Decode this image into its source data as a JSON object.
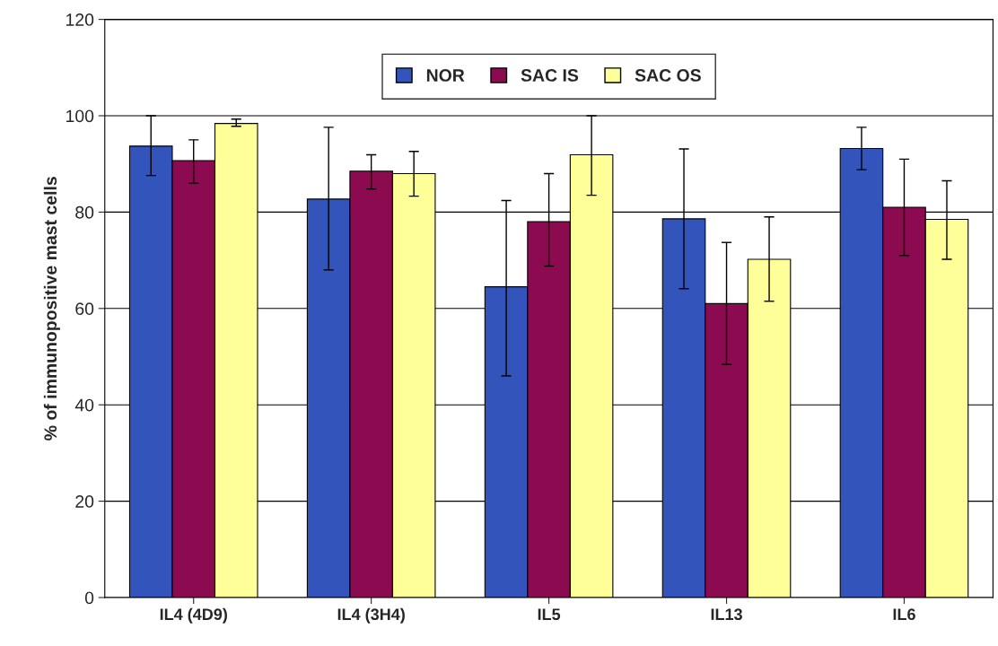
{
  "chart_data": {
    "type": "bar",
    "ylabel": "% of immunopositive mast cells",
    "categories": [
      "IL4 (4D9)",
      "IL4 (3H4)",
      "IL5",
      "IL13",
      "IL6"
    ],
    "series": [
      {
        "name": "NOR",
        "color": "#3355bb",
        "values": [
          93.7,
          82.7,
          64.5,
          78.6,
          93.2
        ],
        "errors": [
          [
            87.6,
            100
          ],
          [
            68,
            97.6
          ],
          [
            46,
            82.4
          ],
          [
            64.1,
            93.1
          ],
          [
            88.8,
            97.6
          ]
        ]
      },
      {
        "name": "SAC IS",
        "color": "#8b0a50",
        "values": [
          90.7,
          88.5,
          78,
          61,
          81
        ],
        "errors": [
          [
            86,
            95
          ],
          [
            84.8,
            91.9
          ],
          [
            68.8,
            88
          ],
          [
            48.4,
            73.7
          ],
          [
            71,
            91
          ]
        ]
      },
      {
        "name": "SAC OS",
        "color": "#ffff99",
        "values": [
          98.4,
          88,
          91.9,
          70.2,
          78.5
        ],
        "errors": [
          [
            97.8,
            99.3
          ],
          [
            83.3,
            92.6
          ],
          [
            83.5,
            100
          ],
          [
            61.5,
            79
          ],
          [
            70.2,
            86.5
          ]
        ]
      }
    ],
    "ylim": [
      0,
      120
    ],
    "yticks": [
      0,
      20,
      40,
      60,
      80,
      100,
      120
    ],
    "grid": "y",
    "legend": "top"
  }
}
